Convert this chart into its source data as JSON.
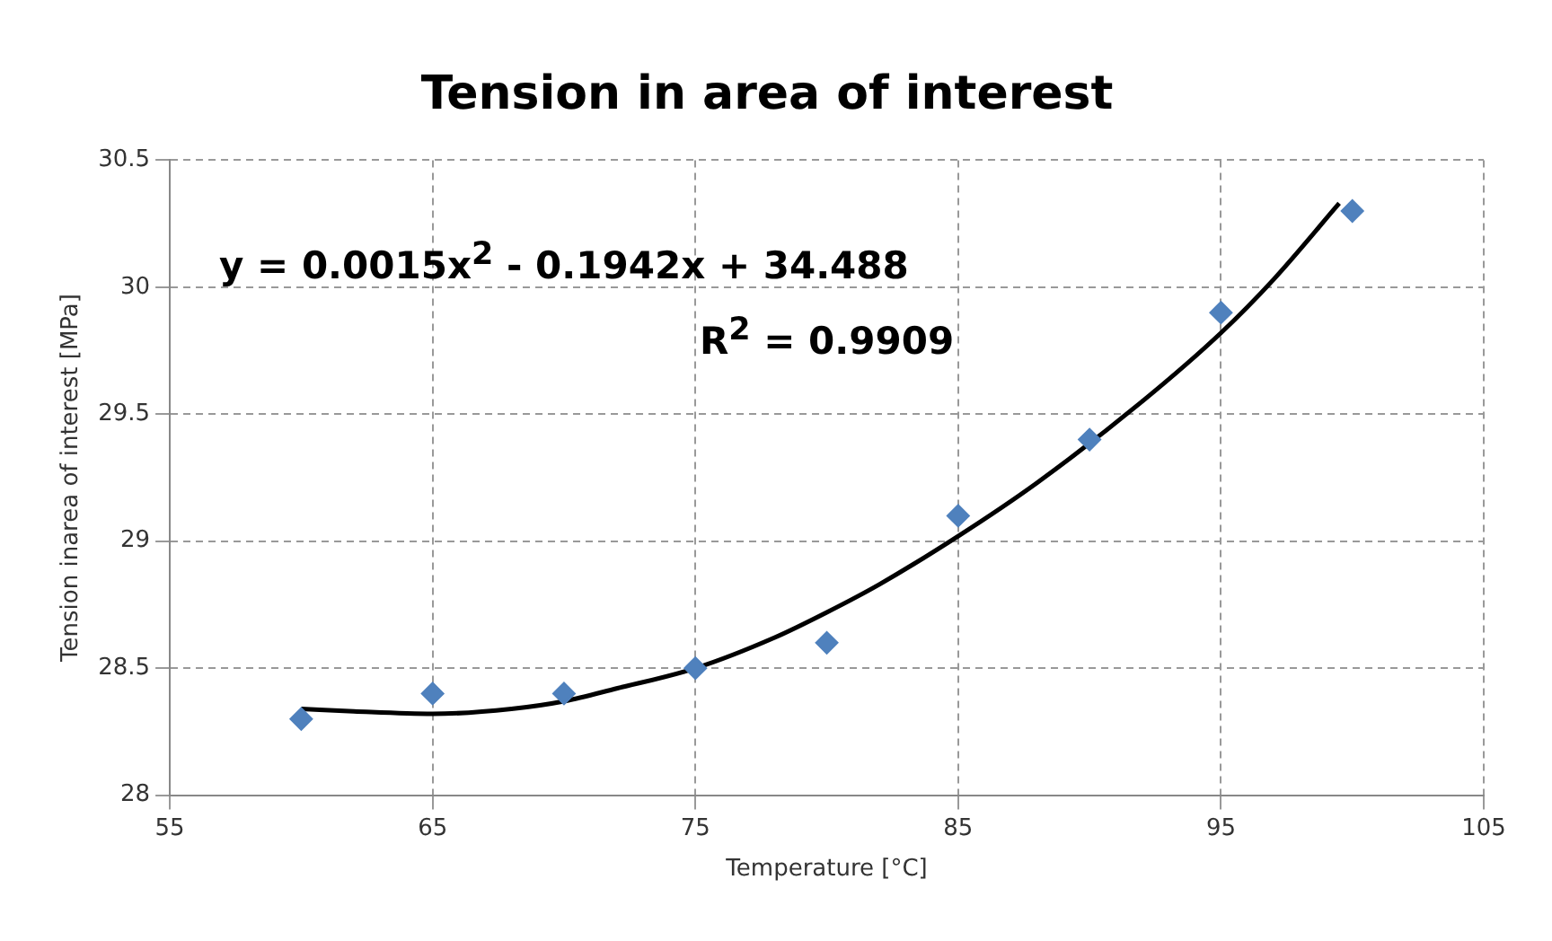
{
  "chart_data": {
    "type": "scatter",
    "title": "Tension in area of interest",
    "xlabel": "Temperature [°C]",
    "ylabel": "Tension inarea of interest [MPa]",
    "x": [
      60,
      65,
      70,
      75,
      80,
      85,
      90,
      95,
      100
    ],
    "series": [
      {
        "color": "#4f81bd",
        "marker": "diamond",
        "values": [
          28.3,
          28.4,
          28.4,
          28.5,
          28.6,
          29.1,
          29.4,
          29.9,
          30.3
        ]
      },
      {
        "type": "line",
        "color": "#000000",
        "marker": "none",
        "line_style": "solid",
        "x": [
          60,
          62,
          65,
          68,
          70,
          72,
          75,
          78,
          80,
          82,
          85,
          88,
          92,
          95,
          97,
          99.5
        ],
        "values": [
          28.34,
          28.33,
          28.32,
          28.34,
          28.37,
          28.42,
          28.5,
          28.62,
          28.72,
          28.83,
          29.02,
          29.23,
          29.55,
          29.82,
          30.03,
          30.33
        ]
      }
    ],
    "xlim": [
      55,
      105
    ],
    "xticks": [
      55,
      65,
      75,
      85,
      95,
      105
    ],
    "ylim": [
      28,
      30.5
    ],
    "yticks": [
      28,
      28.5,
      29,
      29.5,
      30,
      30.5
    ],
    "grid": true,
    "legend": false,
    "annotations": [
      "y = 0.0015x$^{2}$ - 0.1942x + 34.488",
      "R$^{2}$ = 0.9909"
    ]
  }
}
